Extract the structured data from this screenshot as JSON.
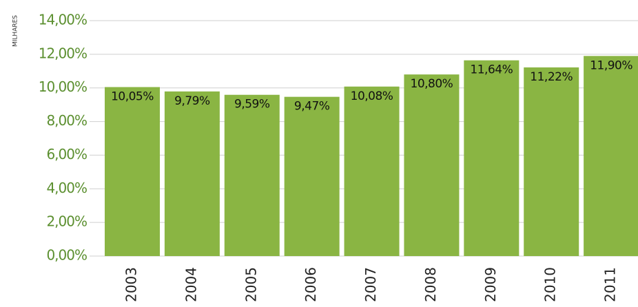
{
  "chart_data": {
    "type": "bar",
    "y_axis_label": "MILHARES",
    "categories": [
      "2003",
      "2004",
      "2005",
      "2006",
      "2007",
      "2008",
      "2009",
      "2010",
      "2011"
    ],
    "values": [
      10.05,
      9.79,
      9.59,
      9.47,
      10.08,
      10.8,
      11.64,
      11.22,
      11.9
    ],
    "value_labels": [
      "10,05%",
      "9,79%",
      "9,59%",
      "9,47%",
      "10,08%",
      "10,80%",
      "11,64%",
      "11,22%",
      "11,90%"
    ],
    "color": "#8ab543",
    "ylim": [
      0,
      14
    ],
    "yticks": [
      {
        "value": 0,
        "label": "0,00%"
      },
      {
        "value": 2,
        "label": "2,00%"
      },
      {
        "value": 4,
        "label": "4,00%"
      },
      {
        "value": 6,
        "label": "6,00%"
      },
      {
        "value": 8,
        "label": "8,00%"
      },
      {
        "value": 10,
        "label": "10,00%"
      },
      {
        "value": 12,
        "label": "12,00%"
      },
      {
        "value": 14,
        "label": "14,00%"
      }
    ],
    "grid": true
  }
}
